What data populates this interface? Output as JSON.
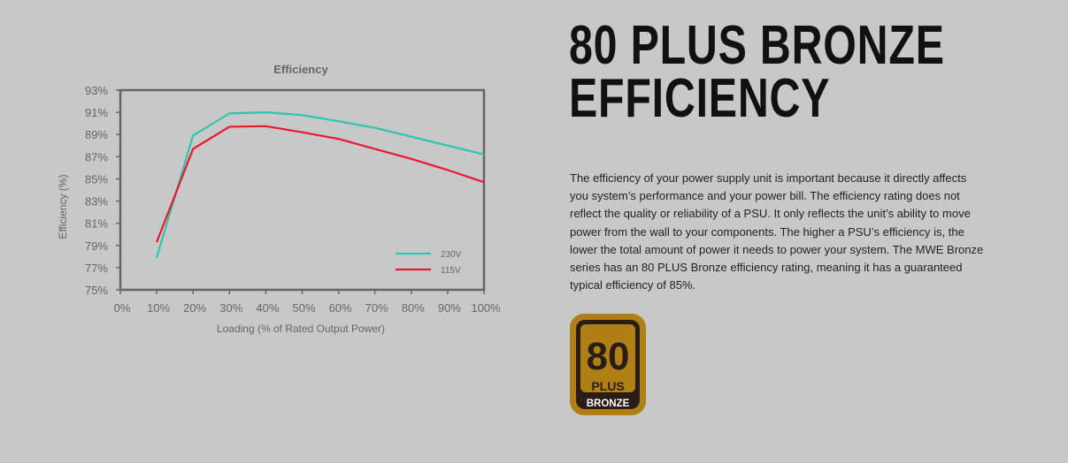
{
  "heading": {
    "line1": "80 PLUS BRONZE",
    "line2": "EFFICIENCY"
  },
  "description": "The efficiency of your power supply unit is important because it directly affects you system’s performance and your power bill. The efficiency rating does not reflect the quality or reliability of a PSU. It only reflects the unit’s ability to move power from the wall to your components. The higher a PSU’s efficiency is, the lower the total amount of power it needs to power your system. The MWE Bronze series has an 80 PLUS Bronze efficiency rating, meaning it has a guaranteed typical efficiency of 85%.",
  "badge": {
    "number": "80",
    "plus": "PLUS",
    "tier": "BRONZE",
    "color": "#b07f16",
    "dark": "#2a1d18"
  },
  "chart_data": {
    "type": "line",
    "title": "Efficiency",
    "xlabel": "Loading (% of Rated Output Power)",
    "ylabel": "Efficiency (%)",
    "xlim": [
      0,
      100
    ],
    "ylim": [
      75,
      93
    ],
    "x_ticks": [
      "0%",
      "10%",
      "20%",
      "30%",
      "40%",
      "50%",
      "60%",
      "70%",
      "80%",
      "90%",
      "100%"
    ],
    "y_ticks": [
      "75%",
      "77%",
      "79%",
      "81%",
      "83%",
      "85%",
      "87%",
      "89%",
      "91%",
      "93%"
    ],
    "x": [
      10,
      20,
      30,
      40,
      50,
      60,
      70,
      80,
      90,
      100
    ],
    "series": [
      {
        "name": "230V",
        "color": "#2ec4b0",
        "values": [
          77.9,
          88.9,
          90.9,
          91.0,
          90.75,
          90.2,
          89.6,
          88.8,
          88.0,
          87.2
        ]
      },
      {
        "name": "115V",
        "color": "#e8192c",
        "values": [
          79.3,
          87.7,
          89.7,
          89.75,
          89.2,
          88.6,
          87.7,
          86.8,
          85.8,
          84.7
        ]
      }
    ],
    "legend": "bottom-right",
    "grid": false
  }
}
